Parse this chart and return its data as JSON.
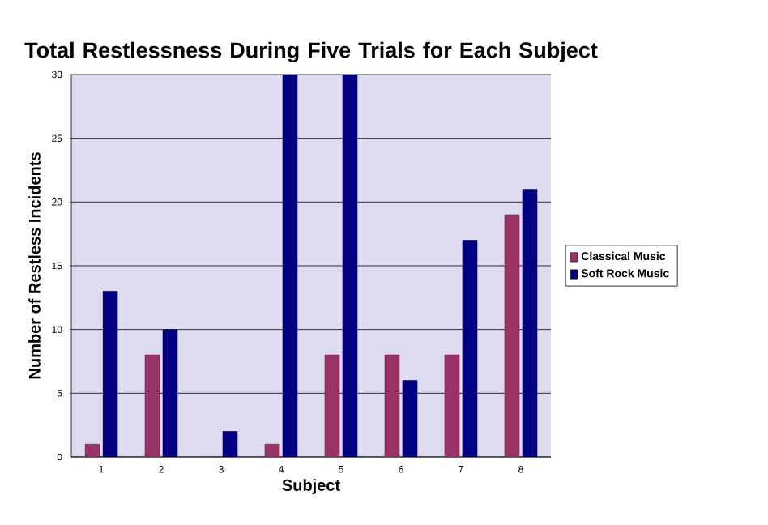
{
  "chart_data": {
    "type": "bar",
    "title": "Total Restlessness During Five Trials for Each Subject",
    "xlabel": "Subject",
    "ylabel": "Number of Restless Incidents",
    "categories": [
      "1",
      "2",
      "3",
      "4",
      "5",
      "6",
      "7",
      "8"
    ],
    "series": [
      {
        "name": "Classical Music",
        "color": "#993366",
        "values": [
          1,
          8,
          0,
          1,
          8,
          8,
          8,
          19
        ]
      },
      {
        "name": "Soft Rock Music",
        "color": "#000080",
        "values": [
          13,
          10,
          2,
          30,
          30,
          6,
          17,
          21
        ]
      }
    ],
    "ylim": [
      0,
      30
    ],
    "yticks": [
      0,
      5,
      10,
      15,
      20,
      25,
      30
    ],
    "grid": "y",
    "legend": "right"
  }
}
